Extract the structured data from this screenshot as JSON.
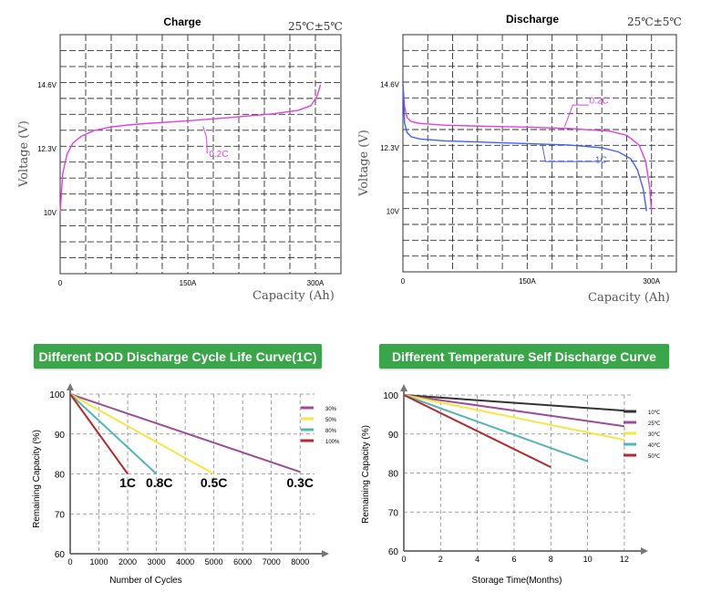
{
  "chart_data": [
    {
      "type": "line",
      "title": "Charge",
      "condition": "25℃±5℃",
      "xlabel": "Capacity (Ah)",
      "ylabel": "Voltage (V)",
      "xlim": [
        0,
        330
      ],
      "ylim": [
        7.8,
        16.4
      ],
      "x_ticks": [
        0,
        150,
        300
      ],
      "x_tick_labels": [
        "0",
        "150A",
        "300A"
      ],
      "y_ticks": [
        10,
        12.3,
        14.6
      ],
      "y_tick_labels": [
        "10V",
        "12.3V",
        "14.6V"
      ],
      "grid": true,
      "series": [
        {
          "name": "0.2C",
          "color": "#e040e0",
          "x": [
            0,
            3,
            8,
            15,
            25,
            40,
            60,
            80,
            100,
            150,
            200,
            250,
            280,
            295,
            302,
            306
          ],
          "y": [
            10.0,
            11.4,
            12.1,
            12.5,
            12.75,
            12.95,
            13.08,
            13.15,
            13.2,
            13.3,
            13.42,
            13.55,
            13.68,
            13.85,
            14.2,
            14.6
          ]
        }
      ],
      "annotations": [
        {
          "text": "0.2C",
          "x": 175,
          "y": 12.0,
          "color": "#e040e0"
        }
      ]
    },
    {
      "type": "line",
      "title": "Discharge",
      "condition": "25℃±5℃",
      "xlabel": "Capacity (Ah)",
      "ylabel": "Voltage (V)",
      "xlim": [
        0,
        330
      ],
      "ylim": [
        7.8,
        16.4
      ],
      "x_ticks": [
        0,
        150,
        300
      ],
      "x_tick_labels": [
        "0",
        "150A",
        "300A"
      ],
      "y_ticks": [
        10,
        12.3,
        14.6
      ],
      "y_tick_labels": [
        "10V",
        "12.3V",
        "14.6V"
      ],
      "grid": true,
      "series": [
        {
          "name": "0.2C",
          "color": "#e040e0",
          "x": [
            0,
            2,
            5,
            10,
            20,
            50,
            100,
            150,
            200,
            250,
            270,
            285,
            293,
            298,
            300
          ],
          "y": [
            14.6,
            13.8,
            13.4,
            13.25,
            13.18,
            13.12,
            13.08,
            13.05,
            13.0,
            12.9,
            12.75,
            12.4,
            11.8,
            10.8,
            10.0
          ]
        },
        {
          "name": "1C",
          "color": "#4060ff",
          "x": [
            0,
            2,
            5,
            10,
            20,
            50,
            100,
            150,
            200,
            240,
            260,
            275,
            283,
            290,
            294
          ],
          "y": [
            14.6,
            13.2,
            12.85,
            12.7,
            12.62,
            12.55,
            12.5,
            12.45,
            12.4,
            12.3,
            12.15,
            11.9,
            11.5,
            10.8,
            10.0
          ]
        }
      ],
      "annotations": [
        {
          "text": "0.2C",
          "x": 225,
          "y": 13.9,
          "color": "#e040e0"
        },
        {
          "text": "1C",
          "x": 232,
          "y": 11.75,
          "color": "#4060ff"
        }
      ]
    },
    {
      "type": "line",
      "title": "Different DOD Discharge Cycle Life Curve(1C)",
      "xlabel": "Number of Cycles",
      "ylabel": "Remaining Capacity (%)",
      "xlim": [
        0,
        8500
      ],
      "ylim": [
        60,
        100
      ],
      "x_ticks": [
        0,
        1000,
        2000,
        3000,
        4000,
        5000,
        6000,
        7000,
        8000
      ],
      "y_ticks": [
        60,
        70,
        80,
        90,
        100
      ],
      "grid": true,
      "legend": "right",
      "series": [
        {
          "name": "30%",
          "color": "#9b4d96",
          "x": [
            0,
            8000
          ],
          "y": [
            100,
            80.5
          ]
        },
        {
          "name": "50%",
          "color": "#f5e642",
          "x": [
            0,
            5000
          ],
          "y": [
            100,
            80
          ]
        },
        {
          "name": "80%",
          "color": "#55b5b5",
          "x": [
            0,
            3000
          ],
          "y": [
            100,
            80
          ]
        },
        {
          "name": "100%",
          "color": "#b5282e",
          "x": [
            0,
            2000
          ],
          "y": [
            100,
            80
          ]
        }
      ],
      "annotations": [
        {
          "text": "1C",
          "x": 2000,
          "y": 77.8
        },
        {
          "text": "0.8C",
          "x": 3100,
          "y": 77.8
        },
        {
          "text": "0.5C",
          "x": 5000,
          "y": 77.8
        },
        {
          "text": "0.3C",
          "x": 8000,
          "y": 77.8
        }
      ]
    },
    {
      "type": "line",
      "title": "Different Temperature Self Discharge Curve",
      "xlabel": "Storage Time(Months)",
      "ylabel": "Remaining Capacity (%)",
      "xlim": [
        0,
        12.5
      ],
      "ylim": [
        60,
        100
      ],
      "x_ticks": [
        0,
        2,
        4,
        6,
        8,
        10,
        12
      ],
      "y_ticks": [
        60,
        70,
        80,
        90,
        100
      ],
      "grid": true,
      "legend": "right",
      "series": [
        {
          "name": "10℃",
          "color": "#333333",
          "x": [
            0,
            12
          ],
          "y": [
            100,
            96
          ]
        },
        {
          "name": "25℃",
          "color": "#9b4d96",
          "x": [
            0,
            12
          ],
          "y": [
            100,
            92
          ]
        },
        {
          "name": "30℃",
          "color": "#f5e642",
          "x": [
            0,
            12
          ],
          "y": [
            100,
            88.5
          ]
        },
        {
          "name": "40℃",
          "color": "#55b5b5",
          "x": [
            0,
            10
          ],
          "y": [
            100,
            83
          ]
        },
        {
          "name": "50℃",
          "color": "#b5282e",
          "x": [
            0,
            8
          ],
          "y": [
            100,
            81.5
          ]
        }
      ]
    }
  ]
}
